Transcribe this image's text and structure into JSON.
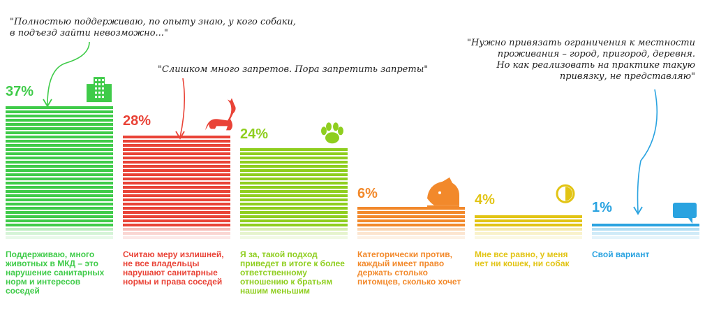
{
  "chart_data": {
    "type": "bar",
    "unit": "%",
    "categories": [
      "Поддерживаю, много животных в МКД – это нарушение санитарных норм и интересов соседей",
      "Считаю меру излишней, не все владельцы нарушают санитарные нормы и права соседей",
      "Я за, такой подход приведет в итоге к более ответственному отношению к братьям нашим меньшим",
      "Категорически против, каждый имеет право держать столько питомцев, сколько хочет",
      "Мне все равно, у меня нет ни кошек, ни собак",
      "Свой вариант"
    ],
    "values": [
      37,
      28,
      24,
      6,
      4,
      1
    ],
    "labels": [
      "37%",
      "28%",
      "24%",
      "6%",
      "4%",
      "1%"
    ],
    "colors": [
      "#3fcb49",
      "#e94337",
      "#8fce1f",
      "#f2892b",
      "#e2c414",
      "#2aa3e0"
    ],
    "icons": [
      "apartment-building-icon",
      "cat-icon",
      "paw-icon",
      "dog-icon",
      "half-circle-icon",
      "speech-bubble-icon"
    ],
    "ylim": [
      0,
      40
    ],
    "legend": "none"
  },
  "quotes": [
    {
      "text": "\"Полностью поддерживаю, по опыту знаю, у кого собаки,\nв подъезд зайти невозможно...\"",
      "target": 0
    },
    {
      "text": "\"Слишком много запретов. Пора запретить запреты\"",
      "target": 1
    },
    {
      "text": "\"Нужно привязать ограничения к местности\nпроживания – город, пригород, деревня.\nНо как реализовать на практике такую\nпривязку, не представляю\"",
      "target": 5
    }
  ]
}
